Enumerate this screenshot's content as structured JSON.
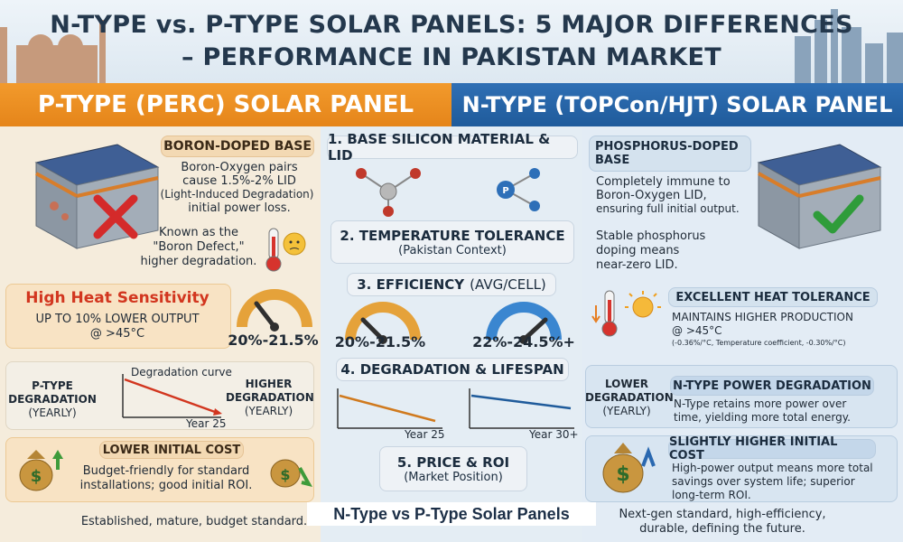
{
  "header": {
    "title_line1": "N-TYPE vs. P-TYPE SOLAR PANELS: 5 MAJOR DIFFERENCES",
    "title_line2": "– PERFORMANCE IN PAKISTAN MARKET"
  },
  "columns": {
    "left_title": "P-TYPE (PERC) SOLAR PANEL",
    "right_title": "N-TYPE (TOPCon/HJT) SOLAR PANEL"
  },
  "sections": {
    "s1": "1. BASE SILICON MATERIAL & LID",
    "s2_title": "2. TEMPERATURE TOLERANCE",
    "s2_sub": "(Pakistan Context)",
    "s3_title": "3. EFFICIENCY",
    "s3_sub": "(AVG/CELL)",
    "s4": "4. DEGRADATION & LIFESPAN",
    "s5_title": "5. PRICE & ROI",
    "s5_sub": "(Market Position)"
  },
  "left": {
    "base_title": "BORON-DOPED BASE",
    "base_text1": "Boron-Oxygen pairs",
    "base_text2": "cause 1.5%-2% LID",
    "base_text3": "(Light-Induced Degradation)",
    "base_text4": "initial power loss.",
    "defect1": "Known as the",
    "defect2": "\"Boron Defect,\"",
    "defect3": "higher degradation.",
    "heat_title": "High Heat Sensitivity",
    "heat_text1": "UP TO 10% LOWER OUTPUT",
    "heat_text2": "@ >45°C",
    "efficiency": "20%-21.5%",
    "deg_label1": "P-TYPE",
    "deg_label2": "DEGRADATION",
    "deg_label3": "(YEARLY)",
    "deg_curve": "Degradation curve",
    "deg_year": "Year 25",
    "higher1": "HIGHER",
    "higher2": "DEGRADATION",
    "higher3": "(YEARLY)",
    "cost_title": "LOWER INITIAL COST",
    "cost_text1": "Budget-friendly for standard",
    "cost_text2": "installations; good initial ROI.",
    "footer": "Established, mature, budget standard."
  },
  "middle": {
    "eff_left": "20%-21.5%",
    "eff_right": "22%-24.5%+",
    "chart_left_year": "Year 25",
    "chart_right_year": "Year 30+",
    "p_symbol": "P"
  },
  "right": {
    "base_title1": "PHOSPHORUS-DOPED",
    "base_title2": "BASE",
    "base_text1": "Completely immune to",
    "base_text2": "Boron-Oxygen LID,",
    "base_text3": "ensuring full initial output.",
    "stable1": "Stable phosphorus",
    "stable2": "doping means",
    "stable3": "near-zero LID.",
    "heat_title": "EXCELLENT HEAT TOLERANCE",
    "heat_text1": "MAINTAINS HIGHER PRODUCTION",
    "heat_text2": "@ >45°C",
    "heat_note": "(-0.36%/°C, Temperature coefficient, -0.30%/°C)",
    "lower1": "LOWER",
    "lower2": "DEGRADATION",
    "lower3": "(YEARLY)",
    "deg_title": "N-TYPE POWER DEGRADATION",
    "deg_text1": "N-Type retains more power over",
    "deg_text2": "time, yielding more total energy.",
    "cost_title": "SLIGHTLY HIGHER INITIAL COST",
    "cost_text1": "High-power output means more total",
    "cost_text2": "savings over system life; superior",
    "cost_text3": "long-term ROI.",
    "footer1": "Next-gen standard, high-efficiency,",
    "footer2": "durable, defining the future."
  },
  "watermark": "N-Type vs P-Type Solar Panels",
  "icons": {
    "cross": "cross-icon",
    "check": "check-icon",
    "thermometer": "thermometer-icon",
    "sun": "sun-icon",
    "gauge": "gauge-icon",
    "money_bag": "money-bag-icon",
    "molecule": "molecule-icon"
  },
  "colors": {
    "orange": "#e5851a",
    "blue": "#1f5b9b",
    "title": "#24384d"
  }
}
